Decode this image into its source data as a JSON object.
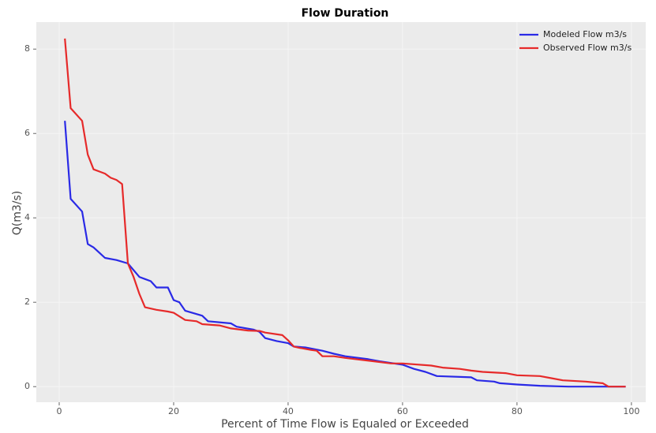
{
  "chart_data": {
    "type": "line",
    "title": "Flow Duration",
    "x_label": "Percent of Time Flow is Equaled or Exceeded",
    "y_label": "Q(m3/s)",
    "xlim": [
      -4,
      102.5
    ],
    "ylim": [
      -0.37,
      8.64
    ],
    "xticks": [
      0,
      20,
      40,
      60,
      80,
      100
    ],
    "yticks": [
      0,
      2,
      4,
      6,
      8
    ],
    "legend": "upper right",
    "series": [
      {
        "name": "Modeled Flow m3/s",
        "color": "#2a2ae6",
        "x": [
          1,
          2,
          4,
          5,
          6,
          8,
          10,
          12,
          14,
          15,
          16,
          17,
          19,
          20,
          21,
          22,
          24,
          25,
          26,
          30,
          31,
          34,
          35,
          36,
          38,
          40,
          41,
          43,
          46,
          48,
          50,
          54,
          56,
          60,
          62,
          64,
          66,
          72,
          73,
          76,
          77,
          80,
          84,
          89,
          99
        ],
        "values": [
          6.3,
          4.45,
          4.15,
          3.38,
          3.3,
          3.05,
          3.0,
          2.92,
          2.6,
          2.55,
          2.5,
          2.35,
          2.35,
          2.05,
          2.0,
          1.8,
          1.72,
          1.68,
          1.55,
          1.5,
          1.42,
          1.35,
          1.3,
          1.15,
          1.08,
          1.03,
          0.95,
          0.93,
          0.85,
          0.78,
          0.72,
          0.65,
          0.6,
          0.52,
          0.42,
          0.35,
          0.25,
          0.22,
          0.15,
          0.12,
          0.08,
          0.05,
          0.02,
          0,
          0
        ]
      },
      {
        "name": "Observed Flow m3/s",
        "color": "#e62a2a",
        "x": [
          1,
          2,
          4,
          5,
          6,
          8,
          9,
          10,
          11,
          12,
          13,
          14,
          15,
          17,
          19,
          20,
          22,
          24,
          25,
          28,
          30,
          33,
          35,
          36,
          39,
          40,
          41,
          42,
          44,
          45,
          46,
          48,
          50,
          55,
          58,
          60,
          65,
          67,
          70,
          72,
          74,
          78,
          80,
          84,
          86,
          88,
          92,
          95,
          96,
          99
        ],
        "values": [
          8.25,
          6.6,
          6.3,
          5.5,
          5.15,
          5.05,
          4.95,
          4.9,
          4.8,
          2.92,
          2.6,
          2.2,
          1.88,
          1.82,
          1.78,
          1.75,
          1.58,
          1.55,
          1.48,
          1.45,
          1.38,
          1.33,
          1.32,
          1.28,
          1.22,
          1.1,
          0.95,
          0.92,
          0.87,
          0.85,
          0.72,
          0.72,
          0.68,
          0.6,
          0.55,
          0.55,
          0.5,
          0.45,
          0.42,
          0.38,
          0.35,
          0.32,
          0.27,
          0.25,
          0.2,
          0.15,
          0.12,
          0.08,
          0,
          0
        ]
      }
    ]
  }
}
